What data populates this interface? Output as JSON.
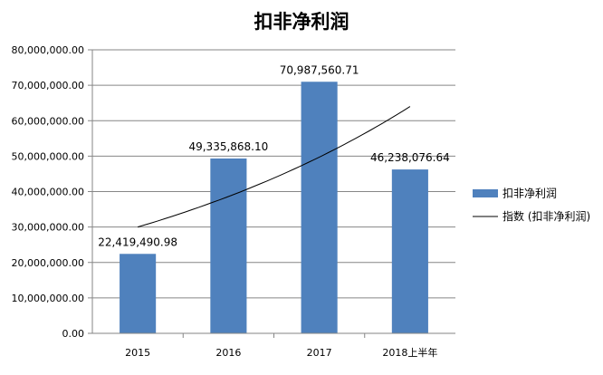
{
  "chart_data": {
    "type": "bar",
    "title": "扣非净利润",
    "categories": [
      "2015",
      "2016",
      "2017",
      "2018上半年"
    ],
    "series": [
      {
        "name": "扣非净利润",
        "values": [
          22419490.98,
          49335868.1,
          70987560.71,
          46238076.64
        ],
        "labels": [
          "22,419,490.98",
          "49,335,868.10",
          "70,987,560.71",
          "46,238,076.64"
        ],
        "color": "#4F81BD"
      }
    ],
    "trendline": {
      "name": "指数 (扣非净利润)",
      "type": "exponential",
      "values": [
        30000000,
        38500000,
        49500000,
        64000000
      ],
      "color": "#000000"
    },
    "ylim": [
      0,
      80000000
    ],
    "yticks": [
      "0.00",
      "10,000,000.00",
      "20,000,000.00",
      "30,000,000.00",
      "40,000,000.00",
      "50,000,000.00",
      "60,000,000.00",
      "70,000,000.00",
      "80,000,000.00"
    ],
    "grid": true,
    "legend_position": "right"
  }
}
